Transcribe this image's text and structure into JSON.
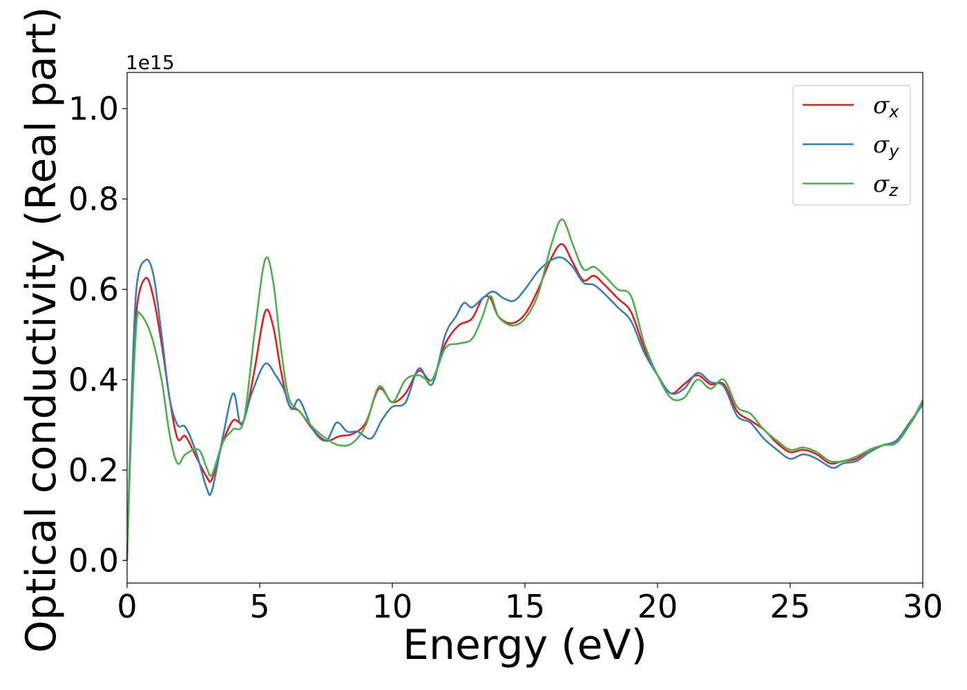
{
  "chart_data": {
    "type": "line",
    "xlabel": "Energy (eV)",
    "ylabel": "Optical conductivity (Real part)",
    "y_offset_text": "1e15",
    "xlim": [
      0,
      30
    ],
    "ylim": [
      -0.05,
      1.08
    ],
    "xticks": [
      0,
      5,
      10,
      15,
      20,
      25,
      30
    ],
    "xtick_labels": [
      "0",
      "5",
      "10",
      "15",
      "20",
      "25",
      "30"
    ],
    "yticks": [
      0.0,
      0.2,
      0.4,
      0.6,
      0.8,
      1.0
    ],
    "ytick_labels": [
      "0.0",
      "0.2",
      "0.4",
      "0.6",
      "0.8",
      "1.0"
    ],
    "grid": false,
    "legend_position": "top-right",
    "series": [
      {
        "name": "σ",
        "subscript": "x",
        "color": "#e41a1c",
        "points": [
          [
            0,
            0
          ],
          [
            0.15,
            0.3
          ],
          [
            0.35,
            0.55
          ],
          [
            0.7,
            0.625
          ],
          [
            1.0,
            0.58
          ],
          [
            1.3,
            0.48
          ],
          [
            1.6,
            0.36
          ],
          [
            1.9,
            0.27
          ],
          [
            2.2,
            0.275
          ],
          [
            2.6,
            0.23
          ],
          [
            3.0,
            0.185
          ],
          [
            3.2,
            0.18
          ],
          [
            3.6,
            0.26
          ],
          [
            4.0,
            0.31
          ],
          [
            4.4,
            0.31
          ],
          [
            4.8,
            0.42
          ],
          [
            5.2,
            0.55
          ],
          [
            5.5,
            0.52
          ],
          [
            5.8,
            0.42
          ],
          [
            6.1,
            0.345
          ],
          [
            6.5,
            0.33
          ],
          [
            7.0,
            0.29
          ],
          [
            7.5,
            0.265
          ],
          [
            8.0,
            0.275
          ],
          [
            8.5,
            0.28
          ],
          [
            9.0,
            0.305
          ],
          [
            9.5,
            0.38
          ],
          [
            10.0,
            0.35
          ],
          [
            10.5,
            0.37
          ],
          [
            11.0,
            0.42
          ],
          [
            11.5,
            0.4
          ],
          [
            12.0,
            0.48
          ],
          [
            12.5,
            0.52
          ],
          [
            13.0,
            0.535
          ],
          [
            13.4,
            0.58
          ],
          [
            13.7,
            0.58
          ],
          [
            14.0,
            0.54
          ],
          [
            14.5,
            0.525
          ],
          [
            15.0,
            0.545
          ],
          [
            15.5,
            0.6
          ],
          [
            16.0,
            0.67
          ],
          [
            16.4,
            0.7
          ],
          [
            16.8,
            0.66
          ],
          [
            17.2,
            0.62
          ],
          [
            17.6,
            0.63
          ],
          [
            18.0,
            0.61
          ],
          [
            18.5,
            0.58
          ],
          [
            19.0,
            0.55
          ],
          [
            19.5,
            0.47
          ],
          [
            20.0,
            0.41
          ],
          [
            20.5,
            0.37
          ],
          [
            21.0,
            0.39
          ],
          [
            21.5,
            0.41
          ],
          [
            22.0,
            0.39
          ],
          [
            22.5,
            0.39
          ],
          [
            23.0,
            0.33
          ],
          [
            23.5,
            0.31
          ],
          [
            24.0,
            0.29
          ],
          [
            24.5,
            0.26
          ],
          [
            25.0,
            0.24
          ],
          [
            25.5,
            0.245
          ],
          [
            26.0,
            0.235
          ],
          [
            26.5,
            0.215
          ],
          [
            27.0,
            0.22
          ],
          [
            27.5,
            0.225
          ],
          [
            28.0,
            0.245
          ],
          [
            28.5,
            0.255
          ],
          [
            29.0,
            0.265
          ],
          [
            29.5,
            0.3
          ],
          [
            30.0,
            0.35
          ]
        ]
      },
      {
        "name": "σ",
        "subscript": "y",
        "color": "#377eb8",
        "points": [
          [
            0,
            0
          ],
          [
            0.15,
            0.32
          ],
          [
            0.35,
            0.6
          ],
          [
            0.7,
            0.665
          ],
          [
            1.0,
            0.63
          ],
          [
            1.3,
            0.5
          ],
          [
            1.6,
            0.36
          ],
          [
            1.9,
            0.3
          ],
          [
            2.2,
            0.295
          ],
          [
            2.6,
            0.24
          ],
          [
            3.0,
            0.16
          ],
          [
            3.2,
            0.155
          ],
          [
            3.6,
            0.27
          ],
          [
            4.0,
            0.37
          ],
          [
            4.3,
            0.3
          ],
          [
            4.7,
            0.37
          ],
          [
            5.2,
            0.435
          ],
          [
            5.6,
            0.41
          ],
          [
            5.9,
            0.38
          ],
          [
            6.2,
            0.335
          ],
          [
            6.5,
            0.355
          ],
          [
            7.0,
            0.29
          ],
          [
            7.5,
            0.265
          ],
          [
            7.9,
            0.305
          ],
          [
            8.3,
            0.285
          ],
          [
            8.7,
            0.285
          ],
          [
            9.2,
            0.27
          ],
          [
            9.6,
            0.31
          ],
          [
            10.0,
            0.34
          ],
          [
            10.5,
            0.35
          ],
          [
            11.0,
            0.425
          ],
          [
            11.5,
            0.39
          ],
          [
            12.0,
            0.5
          ],
          [
            12.4,
            0.54
          ],
          [
            12.7,
            0.57
          ],
          [
            13.0,
            0.56
          ],
          [
            13.4,
            0.58
          ],
          [
            13.8,
            0.595
          ],
          [
            14.2,
            0.58
          ],
          [
            14.6,
            0.575
          ],
          [
            15.0,
            0.6
          ],
          [
            15.5,
            0.64
          ],
          [
            16.0,
            0.665
          ],
          [
            16.4,
            0.67
          ],
          [
            16.8,
            0.65
          ],
          [
            17.2,
            0.615
          ],
          [
            17.6,
            0.61
          ],
          [
            18.0,
            0.59
          ],
          [
            18.5,
            0.56
          ],
          [
            19.0,
            0.53
          ],
          [
            19.5,
            0.46
          ],
          [
            20.0,
            0.41
          ],
          [
            20.5,
            0.37
          ],
          [
            21.0,
            0.38
          ],
          [
            21.5,
            0.415
          ],
          [
            22.0,
            0.395
          ],
          [
            22.5,
            0.385
          ],
          [
            23.0,
            0.32
          ],
          [
            23.5,
            0.305
          ],
          [
            24.0,
            0.27
          ],
          [
            24.5,
            0.245
          ],
          [
            25.0,
            0.225
          ],
          [
            25.5,
            0.235
          ],
          [
            26.0,
            0.225
          ],
          [
            26.6,
            0.205
          ],
          [
            27.0,
            0.215
          ],
          [
            27.5,
            0.22
          ],
          [
            28.0,
            0.24
          ],
          [
            28.5,
            0.255
          ],
          [
            29.0,
            0.265
          ],
          [
            29.5,
            0.305
          ],
          [
            30.0,
            0.345
          ]
        ]
      },
      {
        "name": "σ",
        "subscript": "z",
        "color": "#4daf4a",
        "points": [
          [
            0,
            0
          ],
          [
            0.15,
            0.28
          ],
          [
            0.35,
            0.52
          ],
          [
            0.5,
            0.545
          ],
          [
            0.9,
            0.5
          ],
          [
            1.3,
            0.4
          ],
          [
            1.6,
            0.28
          ],
          [
            1.9,
            0.215
          ],
          [
            2.2,
            0.235
          ],
          [
            2.7,
            0.245
          ],
          [
            3.0,
            0.205
          ],
          [
            3.2,
            0.19
          ],
          [
            3.6,
            0.26
          ],
          [
            4.0,
            0.29
          ],
          [
            4.4,
            0.31
          ],
          [
            4.8,
            0.5
          ],
          [
            5.2,
            0.665
          ],
          [
            5.5,
            0.62
          ],
          [
            5.8,
            0.47
          ],
          [
            6.1,
            0.36
          ],
          [
            6.5,
            0.33
          ],
          [
            7.0,
            0.295
          ],
          [
            7.5,
            0.27
          ],
          [
            8.0,
            0.255
          ],
          [
            8.5,
            0.26
          ],
          [
            9.0,
            0.3
          ],
          [
            9.5,
            0.385
          ],
          [
            10.0,
            0.35
          ],
          [
            10.5,
            0.4
          ],
          [
            11.0,
            0.41
          ],
          [
            11.5,
            0.4
          ],
          [
            12.0,
            0.47
          ],
          [
            12.5,
            0.48
          ],
          [
            13.0,
            0.49
          ],
          [
            13.4,
            0.54
          ],
          [
            13.7,
            0.585
          ],
          [
            14.0,
            0.54
          ],
          [
            14.5,
            0.52
          ],
          [
            15.0,
            0.535
          ],
          [
            15.5,
            0.59
          ],
          [
            16.0,
            0.7
          ],
          [
            16.4,
            0.755
          ],
          [
            16.8,
            0.7
          ],
          [
            17.2,
            0.645
          ],
          [
            17.6,
            0.65
          ],
          [
            18.0,
            0.63
          ],
          [
            18.5,
            0.6
          ],
          [
            19.0,
            0.585
          ],
          [
            19.5,
            0.48
          ],
          [
            20.0,
            0.41
          ],
          [
            20.5,
            0.36
          ],
          [
            21.0,
            0.36
          ],
          [
            21.5,
            0.4
          ],
          [
            22.0,
            0.38
          ],
          [
            22.5,
            0.4
          ],
          [
            23.0,
            0.34
          ],
          [
            23.5,
            0.325
          ],
          [
            24.0,
            0.29
          ],
          [
            24.5,
            0.265
          ],
          [
            25.0,
            0.245
          ],
          [
            25.5,
            0.25
          ],
          [
            26.0,
            0.24
          ],
          [
            26.5,
            0.22
          ],
          [
            27.0,
            0.22
          ],
          [
            27.5,
            0.23
          ],
          [
            28.0,
            0.245
          ],
          [
            28.5,
            0.255
          ],
          [
            29.0,
            0.26
          ],
          [
            29.5,
            0.3
          ],
          [
            30.0,
            0.355
          ]
        ]
      }
    ]
  }
}
